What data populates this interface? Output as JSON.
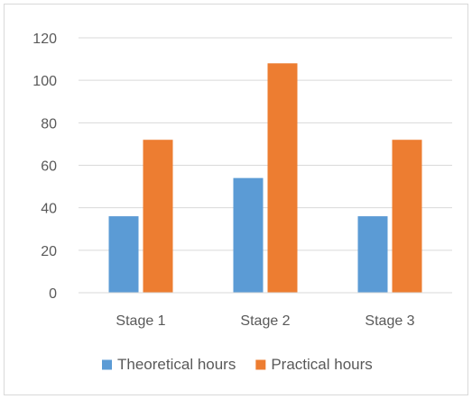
{
  "chart_data": {
    "type": "bar",
    "title": "",
    "xlabel": "",
    "ylabel": "",
    "categories": [
      "Stage 1",
      "Stage 2",
      "Stage 3"
    ],
    "series": [
      {
        "name": "Theoretical hours",
        "values": [
          36,
          54,
          36
        ],
        "color": "#5b9bd5"
      },
      {
        "name": "Practical hours",
        "values": [
          72,
          108,
          72
        ],
        "color": "#ed7d31"
      }
    ],
    "ylim": [
      0,
      120
    ],
    "yticks": [
      0,
      20,
      40,
      60,
      80,
      100,
      120
    ],
    "grid": true,
    "legend_position": "bottom"
  }
}
